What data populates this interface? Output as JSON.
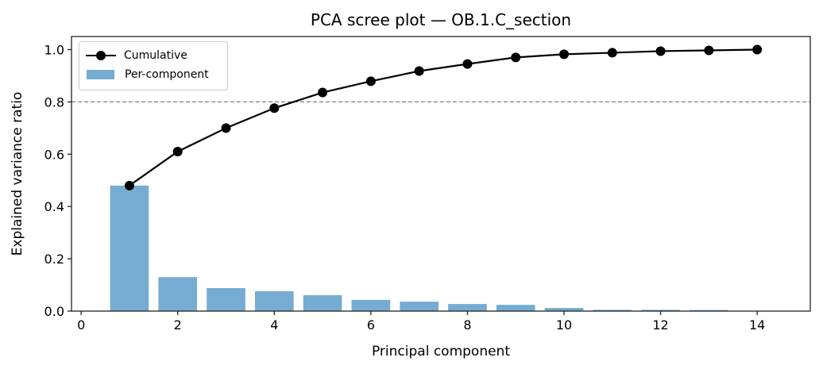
{
  "chart_data": {
    "type": "bar",
    "title": "PCA scree plot — OB.1.C_section",
    "xlabel": "Principal component",
    "ylabel": "Explained variance ratio",
    "xlim": [
      -0.2,
      15.1
    ],
    "ylim": [
      0.0,
      1.05
    ],
    "xticks": [
      0,
      2,
      4,
      6,
      8,
      10,
      12,
      14
    ],
    "yticks": [
      "0.0",
      "0.2",
      "0.4",
      "0.6",
      "0.8",
      "1.0"
    ],
    "grid": false,
    "legend_position": "upper left",
    "categories": [
      1,
      2,
      3,
      4,
      5,
      6,
      7,
      8,
      9,
      10,
      11,
      12,
      13,
      14
    ],
    "series": [
      {
        "name": "Per-component",
        "type": "bar",
        "color": "#76acd2",
        "values": [
          0.48,
          0.13,
          0.088,
          0.076,
          0.061,
          0.043,
          0.036,
          0.027,
          0.024,
          0.012,
          0.005,
          0.005,
          0.004,
          0.001
        ]
      },
      {
        "name": "Cumulative",
        "type": "line",
        "color": "#000000",
        "marker": "o",
        "values": [
          0.48,
          0.61,
          0.7,
          0.776,
          0.836,
          0.879,
          0.918,
          0.945,
          0.97,
          0.982,
          0.988,
          0.994,
          0.997,
          1.0
        ]
      }
    ],
    "annotations": [
      {
        "type": "hline",
        "y": 0.8,
        "style": "dashed",
        "color": "#808080"
      }
    ]
  },
  "legend": {
    "items": [
      {
        "label": "Cumulative"
      },
      {
        "label": "Per-component"
      }
    ]
  }
}
